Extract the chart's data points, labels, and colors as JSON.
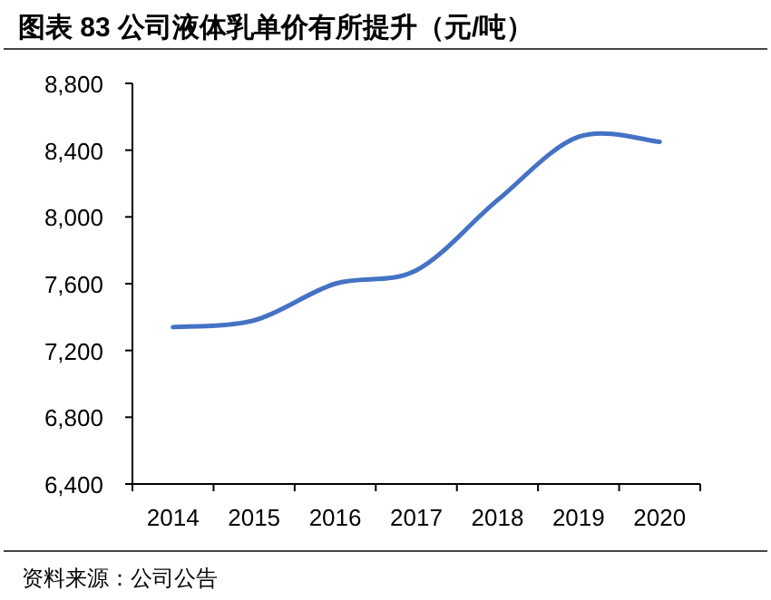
{
  "chart_data": {
    "type": "line",
    "title": "图表 83 公司液体乳单价有所提升（元/吨）",
    "categories": [
      "2014",
      "2015",
      "2016",
      "2017",
      "2018",
      "2019",
      "2020"
    ],
    "series": [
      {
        "color": "#4472c4",
        "values": [
          7340,
          7380,
          7600,
          7680,
          8100,
          8480,
          8450
        ]
      }
    ],
    "ylim": [
      6400,
      8800
    ],
    "yticks": [
      {
        "value": 6400,
        "label": "6,400"
      },
      {
        "value": 6800,
        "label": "6,800"
      },
      {
        "value": 7200,
        "label": "7,200"
      },
      {
        "value": 7600,
        "label": "7,600"
      },
      {
        "value": 8000,
        "label": "8,000"
      },
      {
        "value": 8400,
        "label": "8,400"
      },
      {
        "value": 8800,
        "label": "8,800"
      }
    ],
    "grid": false,
    "marker": "none",
    "line_style": "solid",
    "annotations": [
      "资料来源：公司公告"
    ]
  }
}
